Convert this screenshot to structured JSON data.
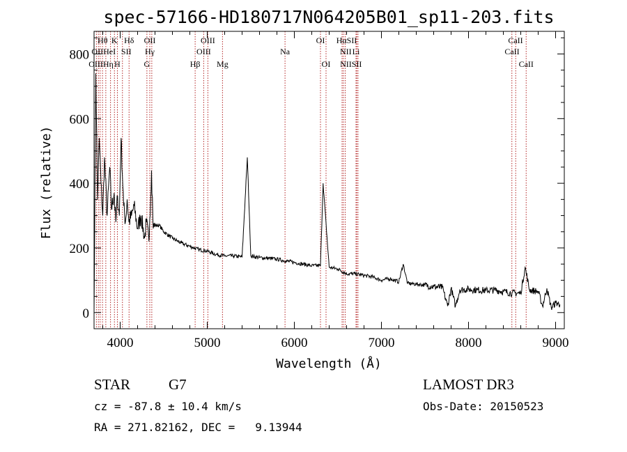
{
  "chart_data": {
    "type": "line",
    "title": "spec-57166-HD180717N064205B01_sp11-203.fits",
    "xlabel": "Wavelength (Å)",
    "ylabel": "Flux (relative)",
    "xlim": [
      3700,
      9100
    ],
    "ylim": [
      -50,
      870
    ],
    "xticks": [
      4000,
      5000,
      6000,
      7000,
      8000,
      9000
    ],
    "yticks": [
      0,
      200,
      400,
      600,
      800
    ],
    "spectrum": {
      "name": "flux",
      "x": [
        3700,
        3720,
        3740,
        3760,
        3780,
        3800,
        3820,
        3850,
        3880,
        3900,
        3930,
        3950,
        3970,
        3990,
        4010,
        4040,
        4060,
        4080,
        4100,
        4130,
        4160,
        4200,
        4240,
        4280,
        4300,
        4330,
        4340,
        4360,
        4380,
        4400,
        4450,
        4500,
        4600,
        4700,
        4800,
        4900,
        5000,
        5100,
        5200,
        5300,
        5400,
        5460,
        5500,
        5600,
        5700,
        5800,
        5900,
        6000,
        6100,
        6200,
        6300,
        6330,
        6400,
        6500,
        6600,
        6700,
        6800,
        6900,
        7000,
        7100,
        7200,
        7250,
        7300,
        7400,
        7500,
        7600,
        7700,
        7760,
        7800,
        7850,
        7900,
        8000,
        8100,
        8200,
        8300,
        8400,
        8500,
        8600,
        8650,
        8700,
        8800,
        8850,
        8900,
        8950,
        9000,
        9050
      ],
      "y": [
        0,
        740,
        350,
        540,
        400,
        300,
        480,
        300,
        450,
        320,
        370,
        280,
        360,
        300,
        540,
        330,
        280,
        350,
        280,
        300,
        330,
        260,
        300,
        230,
        280,
        220,
        290,
        440,
        260,
        270,
        270,
        250,
        230,
        215,
        205,
        195,
        190,
        180,
        175,
        175,
        172,
        480,
        175,
        170,
        168,
        165,
        160,
        155,
        150,
        145,
        145,
        400,
        140,
        135,
        120,
        120,
        115,
        110,
        100,
        105,
        95,
        150,
        90,
        88,
        85,
        80,
        78,
        20,
        75,
        20,
        70,
        72,
        70,
        68,
        70,
        65,
        60,
        60,
        140,
        70,
        65,
        20,
        75,
        15,
        30,
        25
      ]
    },
    "spectral_lines": [
      {
        "label": "Hθ",
        "x": 3798,
        "row": 1
      },
      {
        "label": "K",
        "x": 3934,
        "row": 1
      },
      {
        "label": "Hδ",
        "x": 4102,
        "row": 1
      },
      {
        "label": "OII",
        "x": 4340,
        "row": 1
      },
      {
        "label": "OIII",
        "x": 5007,
        "row": 1
      },
      {
        "label": "OI",
        "x": 6300,
        "row": 1
      },
      {
        "label": "HαSII",
        "x": 6600,
        "row": 1
      },
      {
        "label": "CaII",
        "x": 8540,
        "row": 1
      },
      {
        "label": "OIIHeI",
        "x": 3810,
        "row": 2
      },
      {
        "label": "SII",
        "x": 4070,
        "row": 2
      },
      {
        "label": "Hγ",
        "x": 4340,
        "row": 2
      },
      {
        "label": "OIII",
        "x": 4959,
        "row": 2
      },
      {
        "label": "Na",
        "x": 5893,
        "row": 2
      },
      {
        "label": "NII",
        "x": 6590,
        "row": 2
      },
      {
        "label": "Li",
        "x": 6708,
        "row": 2
      },
      {
        "label": "CaII",
        "x": 8500,
        "row": 2
      },
      {
        "label": "OIIIHη",
        "x": 3780,
        "row": 3
      },
      {
        "label": "H",
        "x": 3968,
        "row": 3
      },
      {
        "label": "G",
        "x": 4307,
        "row": 3
      },
      {
        "label": "Hβ",
        "x": 4861,
        "row": 3
      },
      {
        "label": "Mg",
        "x": 5175,
        "row": 3
      },
      {
        "label": "OI",
        "x": 6364,
        "row": 3
      },
      {
        "label": "NIISII",
        "x": 6650,
        "row": 3
      },
      {
        "label": "CaII",
        "x": 8662,
        "row": 3
      }
    ],
    "line_markers_x": [
      3727,
      3750,
      3770,
      3797,
      3835,
      3889,
      3934,
      3968,
      4026,
      4102,
      4307,
      4340,
      4363,
      4861,
      4959,
      5007,
      5175,
      5893,
      6300,
      6364,
      6548,
      6563,
      6584,
      6708,
      6717,
      6731,
      8498,
      8542,
      8662
    ]
  },
  "footer": {
    "class_label": "STAR",
    "subclass": "G7",
    "survey": "LAMOST DR3",
    "cz": "cz = -87.8 ± 10.4 km/s",
    "obs_date": "Obs-Date: 20150523",
    "radec": "RA = 271.82162, DEC =   9.13944"
  },
  "colors": {
    "axis": "#000000",
    "spectrum": "#000000",
    "marker": "#b22222"
  }
}
